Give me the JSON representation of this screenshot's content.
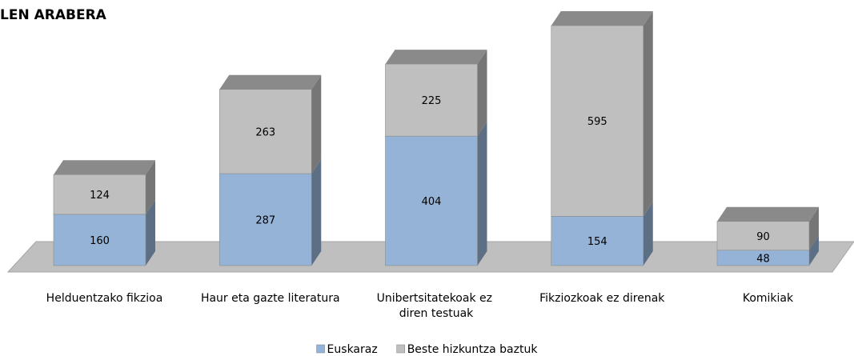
{
  "chart_data": {
    "type": "bar3d_stacked",
    "title": "LEN ARABERA",
    "categories": [
      "Helduentzako fikzioa",
      "Haur eta gazte literatura",
      "Unibertsitatekoak ez diren testuak",
      "Fikziozkoak ez direnak",
      "Komikiak"
    ],
    "series": [
      {
        "name": "Euskaraz",
        "color": "#95b3d7",
        "values": [
          160,
          287,
          404,
          154,
          48
        ]
      },
      {
        "name": "Beste hizkuntza baztuk",
        "color": "#bfbfbf",
        "values": [
          124,
          263,
          225,
          595,
          90
        ]
      }
    ],
    "legend": "bottom"
  }
}
